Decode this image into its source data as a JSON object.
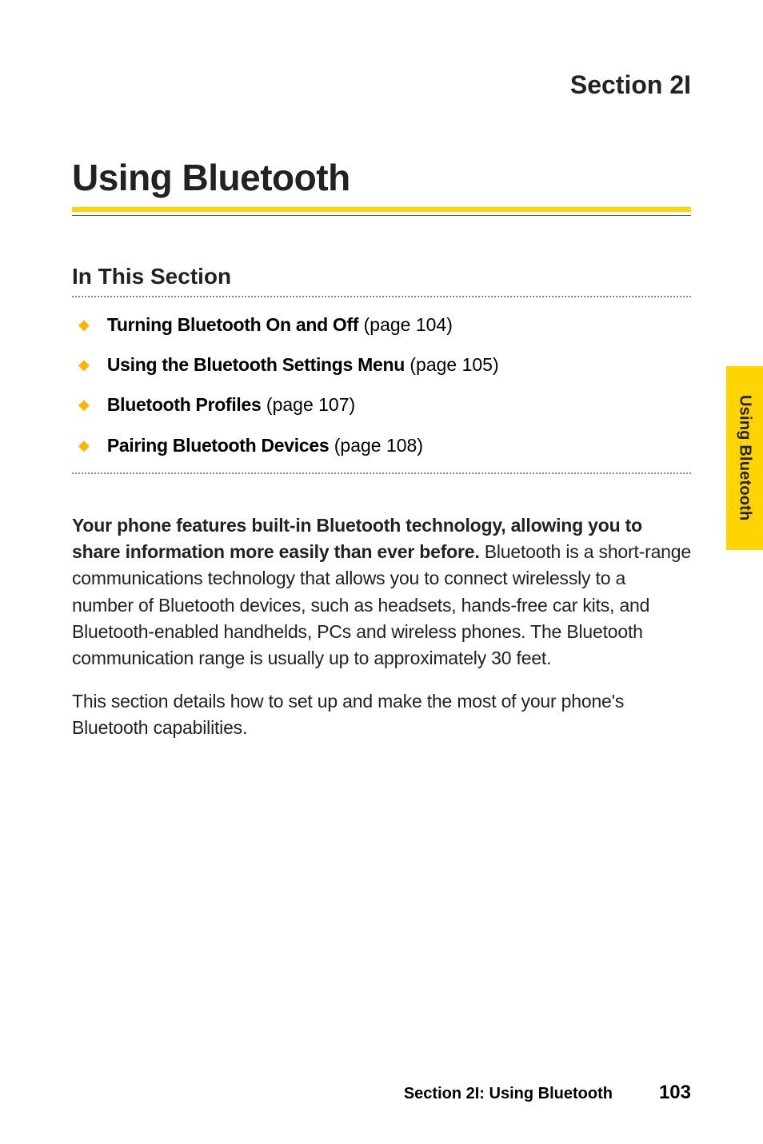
{
  "section_label": "Section 2I",
  "title": "Using Bluetooth",
  "subhead": "In This Section",
  "toc": [
    {
      "label": "Turning Bluetooth On and Off",
      "page": " (page 104)"
    },
    {
      "label": "Using the Bluetooth Settings Menu",
      "page": " (page 105)"
    },
    {
      "label": "Bluetooth Profiles",
      "page": " (page 107)"
    },
    {
      "label": "Pairing Bluetooth Devices",
      "page": " (page 108)"
    }
  ],
  "lead": "Your phone features built-in Bluetooth technology, allowing you to share information more easily than ever before.",
  "para1_rest": " Bluetooth is a short-range communications technology that allows you to connect wirelessly to a number of Bluetooth devices, such as headsets, hands-free car kits, and Bluetooth-enabled handhelds, PCs and wireless phones. The Bluetooth communication range is usually up to approximately 30 feet.",
  "para2": "This section details how to set up and make the most of your phone's Bluetooth capabilities.",
  "side_tab": "Using Bluetooth",
  "footer_text": "Section 2I: Using Bluetooth",
  "footer_page": "103",
  "colors": {
    "accent": "#ffd400",
    "diamond": "#ffb400",
    "text": "#222222"
  }
}
